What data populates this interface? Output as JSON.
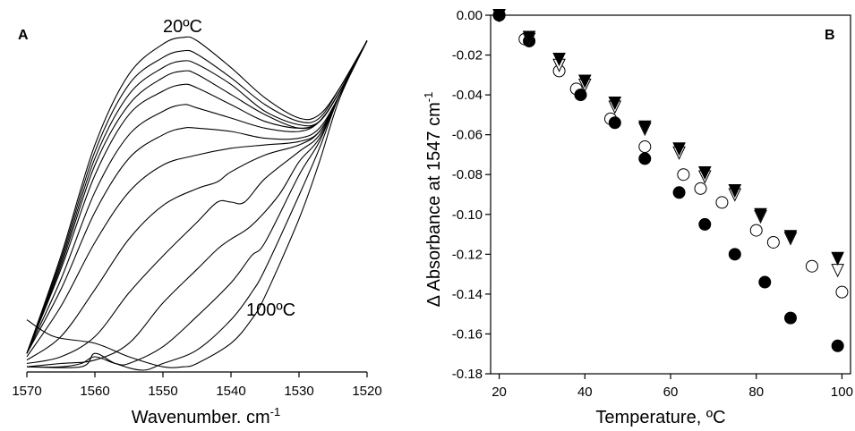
{
  "chart_data": [
    {
      "type": "line",
      "panel_label": "A",
      "xlabel": "Wavenumber. cm",
      "xlabel_superscript": "-1",
      "ylabel": "",
      "xlim": [
        1570,
        1520
      ],
      "x_ticks": [
        "1570",
        "1560",
        "1550",
        "1540",
        "1530",
        "1520"
      ],
      "annotations": [
        "20ºC",
        "100ºC"
      ],
      "note": "y axis unlabeled (absorbance, arbitrary units); curves read relative to frame bottom (0) and top (1)",
      "curves": [
        {
          "temperature_order": 1,
          "points": [
            [
              1570,
              0.05
            ],
            [
              1565,
              0.34
            ],
            [
              1560,
              0.67
            ],
            [
              1555,
              0.88
            ],
            [
              1550,
              0.97
            ],
            [
              1547,
              0.99
            ],
            [
              1545,
              0.98
            ],
            [
              1540,
              0.9
            ],
            [
              1535,
              0.81
            ],
            [
              1530,
              0.75
            ],
            [
              1527,
              0.76
            ],
            [
              1524,
              0.84
            ],
            [
              1520,
              0.98
            ]
          ]
        },
        {
          "temperature_order": 2,
          "points": [
            [
              1570,
              0.05
            ],
            [
              1565,
              0.33
            ],
            [
              1560,
              0.65
            ],
            [
              1555,
              0.85
            ],
            [
              1550,
              0.93
            ],
            [
              1547,
              0.95
            ],
            [
              1545,
              0.94
            ],
            [
              1540,
              0.87
            ],
            [
              1535,
              0.79
            ],
            [
              1530,
              0.74
            ],
            [
              1527,
              0.75
            ],
            [
              1524,
              0.84
            ],
            [
              1520,
              0.98
            ]
          ]
        },
        {
          "temperature_order": 3,
          "points": [
            [
              1570,
              0.05
            ],
            [
              1565,
              0.32
            ],
            [
              1560,
              0.63
            ],
            [
              1555,
              0.82
            ],
            [
              1550,
              0.9
            ],
            [
              1547,
              0.92
            ],
            [
              1545,
              0.91
            ],
            [
              1540,
              0.85
            ],
            [
              1535,
              0.77
            ],
            [
              1530,
              0.73
            ],
            [
              1527,
              0.74
            ],
            [
              1524,
              0.83
            ],
            [
              1520,
              0.98
            ]
          ]
        },
        {
          "temperature_order": 4,
          "points": [
            [
              1570,
              0.05
            ],
            [
              1565,
              0.31
            ],
            [
              1560,
              0.61
            ],
            [
              1555,
              0.79
            ],
            [
              1550,
              0.87
            ],
            [
              1547,
              0.89
            ],
            [
              1545,
              0.88
            ],
            [
              1540,
              0.82
            ],
            [
              1535,
              0.76
            ],
            [
              1530,
              0.72
            ],
            [
              1527,
              0.74
            ],
            [
              1524,
              0.83
            ],
            [
              1520,
              0.98
            ]
          ]
        },
        {
          "temperature_order": 5,
          "points": [
            [
              1570,
              0.05
            ],
            [
              1565,
              0.3
            ],
            [
              1560,
              0.58
            ],
            [
              1555,
              0.76
            ],
            [
              1550,
              0.83
            ],
            [
              1547,
              0.85
            ],
            [
              1545,
              0.84
            ],
            [
              1540,
              0.79
            ],
            [
              1535,
              0.74
            ],
            [
              1530,
              0.72
            ],
            [
              1527,
              0.74
            ],
            [
              1524,
              0.83
            ],
            [
              1520,
              0.98
            ]
          ]
        },
        {
          "temperature_order": 6,
          "points": [
            [
              1570,
              0.05
            ],
            [
              1565,
              0.27
            ],
            [
              1560,
              0.53
            ],
            [
              1555,
              0.7
            ],
            [
              1550,
              0.77
            ],
            [
              1547,
              0.79
            ],
            [
              1545,
              0.78
            ],
            [
              1540,
              0.75
            ],
            [
              1535,
              0.72
            ],
            [
              1530,
              0.71
            ],
            [
              1527,
              0.74
            ],
            [
              1524,
              0.83
            ],
            [
              1520,
              0.98
            ]
          ]
        },
        {
          "temperature_order": 7,
          "points": [
            [
              1570,
              0.05
            ],
            [
              1565,
              0.24
            ],
            [
              1560,
              0.47
            ],
            [
              1555,
              0.63
            ],
            [
              1550,
              0.7
            ],
            [
              1547,
              0.72
            ],
            [
              1545,
              0.72
            ],
            [
              1540,
              0.71
            ],
            [
              1535,
              0.69
            ],
            [
              1530,
              0.69
            ],
            [
              1527,
              0.72
            ],
            [
              1524,
              0.82
            ],
            [
              1520,
              0.98
            ]
          ]
        },
        {
          "temperature_order": 8,
          "points": [
            [
              1570,
              0.04
            ],
            [
              1565,
              0.19
            ],
            [
              1560,
              0.38
            ],
            [
              1555,
              0.53
            ],
            [
              1550,
              0.61
            ],
            [
              1545,
              0.64
            ],
            [
              1540,
              0.66
            ],
            [
              1535,
              0.67
            ],
            [
              1530,
              0.68
            ],
            [
              1527,
              0.71
            ],
            [
              1524,
              0.82
            ],
            [
              1520,
              0.98
            ]
          ]
        },
        {
          "temperature_order": 9,
          "points": [
            [
              1570,
              0.03
            ],
            [
              1565,
              0.1
            ],
            [
              1560,
              0.24
            ],
            [
              1555,
              0.39
            ],
            [
              1550,
              0.49
            ],
            [
              1545,
              0.54
            ],
            [
              1542,
              0.56
            ],
            [
              1540,
              0.59
            ],
            [
              1535,
              0.64
            ],
            [
              1530,
              0.67
            ],
            [
              1527,
              0.71
            ],
            [
              1524,
              0.82
            ],
            [
              1520,
              0.98
            ]
          ]
        },
        {
          "temperature_order": 10,
          "points": [
            [
              1570,
              0.02
            ],
            [
              1565,
              0.04
            ],
            [
              1560,
              0.1
            ],
            [
              1555,
              0.23
            ],
            [
              1550,
              0.34
            ],
            [
              1545,
              0.44
            ],
            [
              1542,
              0.5
            ],
            [
              1540,
              0.5
            ],
            [
              1538,
              0.5
            ],
            [
              1535,
              0.57
            ],
            [
              1530,
              0.65
            ],
            [
              1527,
              0.7
            ],
            [
              1524,
              0.82
            ],
            [
              1520,
              0.98
            ]
          ]
        },
        {
          "temperature_order": 11,
          "points": [
            [
              1570,
              0.01
            ],
            [
              1565,
              0.02
            ],
            [
              1560,
              0.03
            ],
            [
              1555,
              0.08
            ],
            [
              1550,
              0.2
            ],
            [
              1545,
              0.3
            ],
            [
              1542,
              0.36
            ],
            [
              1540,
              0.39
            ],
            [
              1537,
              0.43
            ],
            [
              1533,
              0.52
            ],
            [
              1530,
              0.62
            ],
            [
              1527,
              0.69
            ],
            [
              1524,
              0.82
            ],
            [
              1520,
              0.98
            ]
          ]
        },
        {
          "temperature_order": 12,
          "points": [
            [
              1570,
              0.01
            ],
            [
              1565,
              0.01
            ],
            [
              1562,
              0.02
            ],
            [
              1560,
              0.04
            ],
            [
              1557,
              0.02
            ],
            [
              1555,
              0.02
            ],
            [
              1550,
              0.07
            ],
            [
              1545,
              0.16
            ],
            [
              1540,
              0.26
            ],
            [
              1537,
              0.34
            ],
            [
              1535,
              0.38
            ],
            [
              1530,
              0.58
            ],
            [
              1527,
              0.68
            ],
            [
              1524,
              0.82
            ],
            [
              1520,
              0.98
            ]
          ]
        },
        {
          "temperature_order": 13,
          "points": [
            [
              1570,
              0.01
            ],
            [
              1562,
              0.01
            ],
            [
              1560,
              0.05
            ],
            [
              1557,
              0.02
            ],
            [
              1553,
              0.0
            ],
            [
              1550,
              0.02
            ],
            [
              1545,
              0.06
            ],
            [
              1540,
              0.15
            ],
            [
              1537,
              0.23
            ],
            [
              1535,
              0.3
            ],
            [
              1530,
              0.52
            ],
            [
              1527,
              0.66
            ],
            [
              1524,
              0.82
            ],
            [
              1520,
              0.98
            ]
          ]
        },
        {
          "temperature_order": 14,
          "points": [
            [
              1570,
              0.15
            ],
            [
              1566,
              0.1
            ],
            [
              1560,
              0.08
            ],
            [
              1555,
              0.04
            ],
            [
              1550,
              0.01
            ],
            [
              1547,
              0.01
            ],
            [
              1545,
              0.02
            ],
            [
              1540,
              0.08
            ],
            [
              1537,
              0.15
            ],
            [
              1535,
              0.22
            ],
            [
              1530,
              0.45
            ],
            [
              1527,
              0.62
            ],
            [
              1524,
              0.81
            ],
            [
              1520,
              0.98
            ]
          ]
        }
      ]
    },
    {
      "type": "scatter",
      "panel_label": "B",
      "xlabel": "Temperature, ºC",
      "ylabel": "Δ Absorbance at 1547 cm",
      "ylabel_superscript": "-1",
      "xlim": [
        18,
        102
      ],
      "ylim": [
        -0.18,
        0.0
      ],
      "x_ticks": [
        "20",
        "40",
        "60",
        "80",
        "100"
      ],
      "y_ticks": [
        "0.00",
        "-0.02",
        "-0.04",
        "-0.06",
        "-0.08",
        "-0.10",
        "-0.12",
        "-0.14",
        "-0.16",
        "-0.18"
      ],
      "series": [
        {
          "marker": "filled-circle",
          "points": [
            [
              20,
              0.0
            ],
            [
              27,
              -0.013
            ],
            [
              39,
              -0.04
            ],
            [
              47,
              -0.054
            ],
            [
              54,
              -0.072
            ],
            [
              62,
              -0.089
            ],
            [
              68,
              -0.105
            ],
            [
              75,
              -0.12
            ],
            [
              82,
              -0.134
            ],
            [
              88,
              -0.152
            ],
            [
              99,
              -0.166
            ]
          ]
        },
        {
          "marker": "open-circle",
          "points": [
            [
              20,
              0.0
            ],
            [
              26,
              -0.012
            ],
            [
              34,
              -0.028
            ],
            [
              38,
              -0.037
            ],
            [
              46,
              -0.052
            ],
            [
              54,
              -0.066
            ],
            [
              63,
              -0.08
            ],
            [
              67,
              -0.087
            ],
            [
              72,
              -0.094
            ],
            [
              80,
              -0.108
            ],
            [
              84,
              -0.114
            ],
            [
              93,
              -0.126
            ],
            [
              100,
              -0.139
            ]
          ]
        },
        {
          "marker": "filled-triangle-down",
          "points": [
            [
              20,
              0.0
            ],
            [
              27,
              -0.011
            ],
            [
              34,
              -0.022
            ],
            [
              40,
              -0.033
            ],
            [
              47,
              -0.044
            ],
            [
              54,
              -0.056
            ],
            [
              62,
              -0.067
            ],
            [
              68,
              -0.079
            ],
            [
              75,
              -0.088
            ],
            [
              81,
              -0.1
            ],
            [
              88,
              -0.111
            ],
            [
              99,
              -0.122
            ]
          ]
        },
        {
          "marker": "open-triangle-down",
          "points": [
            [
              20,
              0.0
            ],
            [
              27,
              -0.012
            ],
            [
              34,
              -0.025
            ],
            [
              40,
              -0.035
            ],
            [
              47,
              -0.046
            ],
            [
              54,
              -0.057
            ],
            [
              62,
              -0.069
            ],
            [
              68,
              -0.081
            ],
            [
              75,
              -0.09
            ],
            [
              81,
              -0.101
            ],
            [
              88,
              -0.112
            ],
            [
              99,
              -0.128
            ]
          ]
        }
      ]
    }
  ]
}
